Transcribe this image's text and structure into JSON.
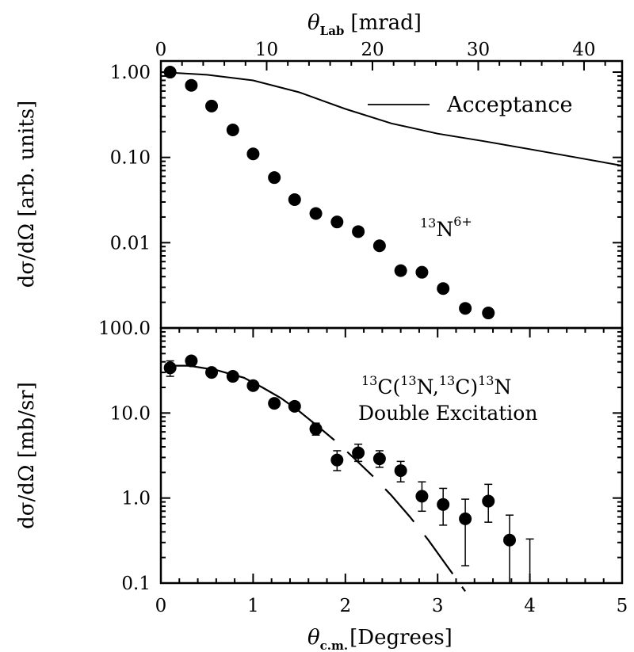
{
  "chart_data": [
    {
      "type": "scatter",
      "panel": "top",
      "x_top_axis": {
        "label_symbol": "θ",
        "label_subscript": "Lab",
        "label_unit": "[mrad]",
        "range": [
          0,
          43.6
        ],
        "ticks": [
          0,
          10,
          20,
          30,
          40
        ],
        "tick_labels": [
          "0",
          "10",
          "20",
          "30",
          "40"
        ]
      },
      "y_axis": {
        "label": "dσ/dΩ [arb. units]",
        "scale": "log",
        "range": [
          0.001,
          1.35
        ],
        "ticks": [
          1.0,
          0.1,
          0.01
        ],
        "tick_labels": [
          "1.00",
          "0.10",
          "0.01"
        ]
      },
      "series": [
        {
          "name": "Acceptance",
          "style": "line",
          "x": [
            0,
            0.5,
            1.0,
            1.5,
            2.0,
            2.5,
            3.0,
            3.5,
            4.0,
            4.5,
            5.0
          ],
          "y": [
            1.0,
            0.93,
            0.8,
            0.58,
            0.37,
            0.25,
            0.19,
            0.155,
            0.125,
            0.1,
            0.08
          ]
        },
        {
          "name": "",
          "style": "markers",
          "x": [
            0.1,
            0.33,
            0.55,
            0.78,
            1.0,
            1.23,
            1.45,
            1.68,
            1.91,
            2.14,
            2.37,
            2.6,
            2.83,
            3.06,
            3.3,
            3.55
          ],
          "y": [
            1.0,
            0.7,
            0.4,
            0.21,
            0.11,
            0.058,
            0.032,
            0.022,
            0.0175,
            0.0135,
            0.0092,
            0.0047,
            0.0045,
            0.0029,
            0.0017,
            0.0015
          ]
        }
      ],
      "legend": {
        "entries": [
          "Acceptance"
        ],
        "placement": "top-right"
      },
      "annotation": {
        "superscript": "13",
        "base": "N",
        "charge": "6+"
      }
    },
    {
      "type": "scatter",
      "panel": "bottom",
      "x_axis": {
        "label_symbol": "θ",
        "label_subscript": "c.m.",
        "label_unit": "[Degrees]",
        "range": [
          0,
          5
        ],
        "ticks": [
          0,
          1,
          2,
          3,
          4,
          5
        ],
        "tick_labels": [
          "0",
          "1",
          "2",
          "3",
          "4",
          "5"
        ]
      },
      "y_axis": {
        "label": "dσ/dΩ [mb/sr]",
        "scale": "log",
        "range": [
          0.1,
          100
        ],
        "ticks": [
          100,
          10,
          1,
          0.1
        ],
        "tick_labels": [
          "100.0",
          "10.0",
          "1.0",
          "0.1"
        ]
      },
      "series": [
        {
          "name": "",
          "style": "markers-errorbars",
          "x": [
            0.1,
            0.33,
            0.55,
            0.78,
            1.0,
            1.23,
            1.45,
            1.68,
            1.91,
            2.14,
            2.37,
            2.6,
            2.83,
            3.06,
            3.3,
            3.55,
            3.78,
            4.0
          ],
          "y": [
            34,
            41,
            30,
            27,
            21,
            13,
            12,
            6.5,
            2.8,
            3.4,
            2.9,
            2.1,
            1.05,
            0.84,
            0.57,
            0.92,
            0.32,
            null
          ],
          "err_low": [
            27,
            36,
            null,
            null,
            null,
            null,
            null,
            5.5,
            2.1,
            2.7,
            2.3,
            1.55,
            0.7,
            0.48,
            0.16,
            0.52,
            0.1,
            0.1
          ],
          "err_high": [
            41,
            46,
            null,
            null,
            null,
            null,
            null,
            7.6,
            3.6,
            4.3,
            3.6,
            2.7,
            1.55,
            1.3,
            0.97,
            1.45,
            0.63,
            0.33
          ]
        },
        {
          "name": "",
          "style": "dashed-line",
          "x": [
            0.05,
            0.3,
            0.6,
            0.9,
            1.1,
            1.3,
            1.5,
            1.7,
            1.9,
            2.1,
            2.3,
            2.5,
            2.7,
            2.9,
            3.1,
            3.3
          ],
          "y": [
            36,
            36,
            32,
            26,
            20,
            15,
            10.5,
            7.0,
            4.6,
            2.9,
            1.8,
            1.07,
            0.6,
            0.32,
            0.16,
            0.08
          ]
        }
      ],
      "annotation": {
        "reaction": {
          "m1": "13",
          "e1": "C(",
          "m2": "13",
          "e2": "N,",
          "m3": "13",
          "e3": "C)",
          "m4": "13",
          "e4": "N"
        },
        "subtitle": "Double Excitation"
      }
    }
  ]
}
